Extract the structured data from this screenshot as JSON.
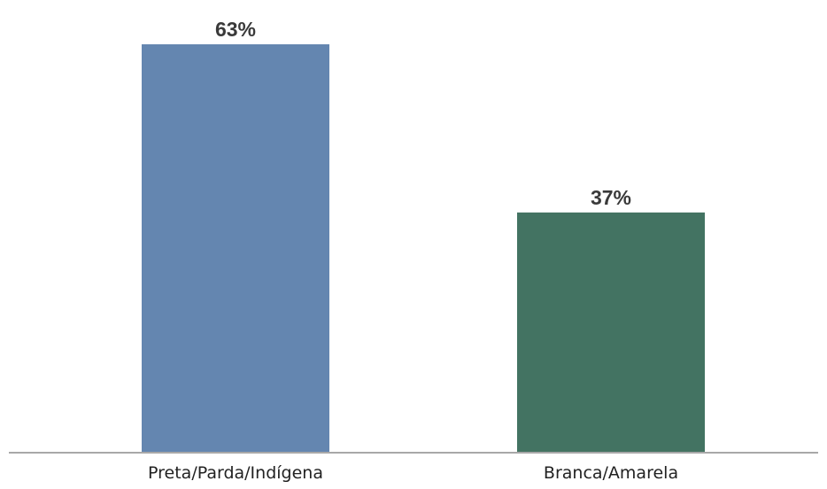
{
  "chart_data": {
    "type": "bar",
    "categories": [
      "Preta/Parda/Indígena",
      "Branca/Amarela"
    ],
    "values": [
      63,
      37
    ],
    "value_labels": [
      "63%",
      "37%"
    ],
    "colors": [
      "#6486b0",
      "#437362"
    ],
    "ylim": [
      0,
      63
    ],
    "grid": false,
    "legend": "none"
  }
}
